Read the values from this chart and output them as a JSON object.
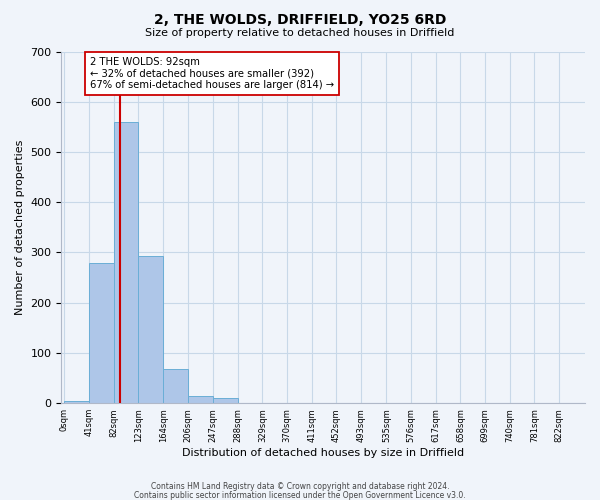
{
  "title": "2, THE WOLDS, DRIFFIELD, YO25 6RD",
  "subtitle": "Size of property relative to detached houses in Driffield",
  "xlabel": "Distribution of detached houses by size in Driffield",
  "ylabel": "Number of detached properties",
  "bar_color": "#aec6e8",
  "bar_edge_color": "#6aaed6",
  "bin_edges": [
    0,
    41,
    82,
    123,
    164,
    206,
    247,
    288,
    329,
    370,
    411,
    452,
    493,
    535,
    576,
    617,
    658,
    699,
    740,
    781,
    822
  ],
  "bar_heights": [
    5,
    280,
    560,
    292,
    68,
    14,
    10,
    0,
    0,
    0,
    0,
    0,
    0,
    0,
    0,
    0,
    0,
    0,
    0,
    0
  ],
  "tick_labels": [
    "0sqm",
    "41sqm",
    "82sqm",
    "123sqm",
    "164sqm",
    "206sqm",
    "247sqm",
    "288sqm",
    "329sqm",
    "370sqm",
    "411sqm",
    "452sqm",
    "493sqm",
    "535sqm",
    "576sqm",
    "617sqm",
    "658sqm",
    "699sqm",
    "740sqm",
    "781sqm",
    "822sqm"
  ],
  "ylim": [
    0,
    700
  ],
  "yticks": [
    0,
    100,
    200,
    300,
    400,
    500,
    600,
    700
  ],
  "vline_x": 92,
  "vline_color": "#cc0000",
  "annotation_text": "2 THE WOLDS: 92sqm\n← 32% of detached houses are smaller (392)\n67% of semi-detached houses are larger (814) →",
  "annotation_box_color": "#ffffff",
  "annotation_box_edge": "#cc0000",
  "footer_line1": "Contains HM Land Registry data © Crown copyright and database right 2024.",
  "footer_line2": "Contains public sector information licensed under the Open Government Licence v3.0.",
  "background_color": "#f0f4fa",
  "grid_color": "#c8d8e8"
}
